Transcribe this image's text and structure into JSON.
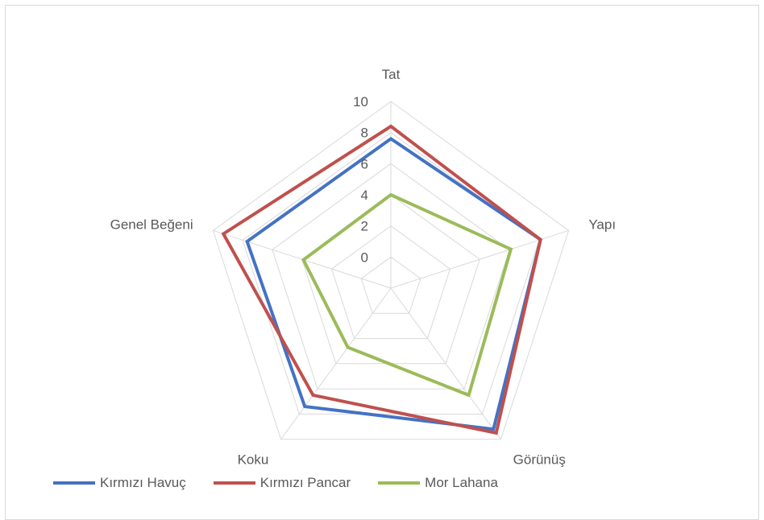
{
  "chart_data": {
    "type": "radar",
    "axes": [
      "Tat",
      "Yapı",
      "Görünüş",
      "Koku",
      "Genel Beğeni"
    ],
    "ticks": [
      "0",
      "2",
      "4",
      "6",
      "8",
      "10"
    ],
    "rmin": -2,
    "rmax": 10,
    "grid": true,
    "legend_position": "bottom-left",
    "series": [
      {
        "name": "Kırmızı Havuç",
        "color": "#4472c4",
        "values": [
          7.6,
          8.1,
          9.2,
          7.4,
          7.7
        ]
      },
      {
        "name": "Kırmızı Pancar",
        "color": "#c0504d",
        "values": [
          8.4,
          8.1,
          9.5,
          6.5,
          9.3
        ]
      },
      {
        "name": "Mor Lahana",
        "color": "#9bbb59",
        "values": [
          4.0,
          6.1,
          6.5,
          2.7,
          3.9
        ]
      }
    ]
  }
}
